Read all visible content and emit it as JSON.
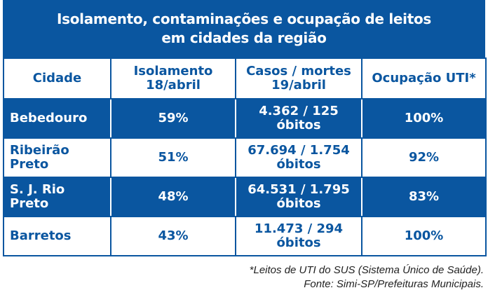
{
  "title": {
    "line1": "Isolamento, contaminações e ocupação de leitos",
    "line2": "em cidades da região"
  },
  "headers": [
    {
      "l1": "Cidade",
      "l2": ""
    },
    {
      "l1": "Isolamento",
      "l2": "18/abril"
    },
    {
      "l1": "Casos / mortes",
      "l2": "19/abril"
    },
    {
      "l1": "Ocupação UTI*",
      "l2": ""
    }
  ],
  "rows": [
    {
      "cidade": "Bebedouro",
      "isolamento": "59%",
      "casos": "4.362 / 125",
      "obitos": "óbitos",
      "uti": "100%"
    },
    {
      "cidade": "Ribeirão Preto",
      "isolamento": "51%",
      "casos": "67.694 / 1.754",
      "obitos": "óbitos",
      "uti": "92%"
    },
    {
      "cidade": "S. J. Rio Preto",
      "isolamento": "48%",
      "casos": "64.531 / 1.795",
      "obitos": "óbitos",
      "uti": "83%"
    },
    {
      "cidade": "Barretos",
      "isolamento": "43%",
      "casos": "11.473 / 294",
      "obitos": "óbitos",
      "uti": "100%"
    }
  ],
  "footnote": {
    "line1": "*Leitos de UTI do SUS (Sistema Único de Saúde).",
    "line2": "Fonte: Simi-SP/Prefeituras Municipais."
  },
  "colors": {
    "accent": "#0a56a0"
  }
}
